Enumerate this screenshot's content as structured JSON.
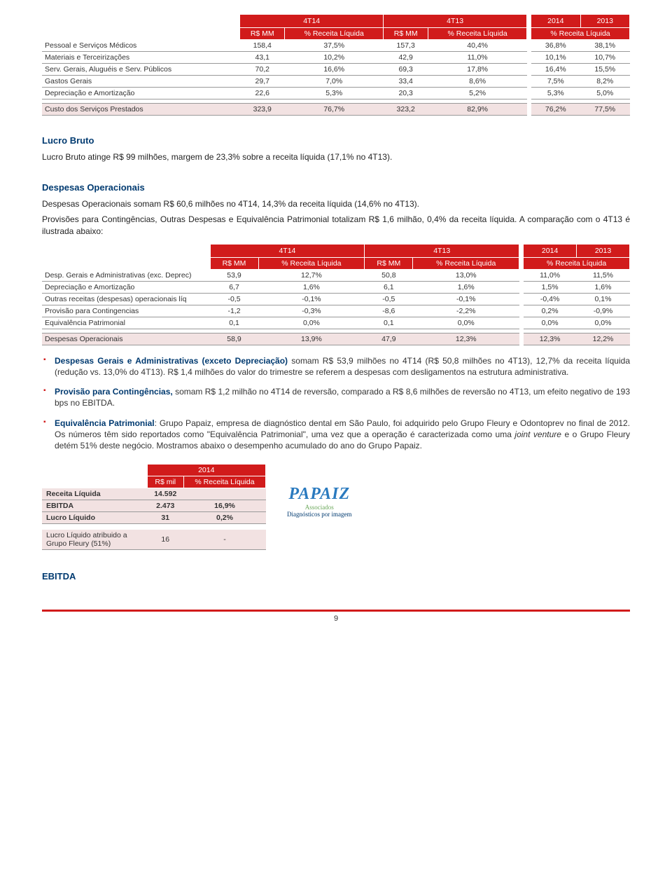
{
  "colors": {
    "primary_red": "#d11b1b",
    "accent_blue": "#003a70",
    "row_highlight": "#f2e2e2",
    "grid": "#999",
    "logo_blue": "#2a7abf",
    "logo_green": "#6BA85A"
  },
  "table1": {
    "periods_top": {
      "p1": "4T14",
      "p2": "4T13",
      "p3": "2014",
      "p4": "2013"
    },
    "col_headers": {
      "c1": "R$ MM",
      "c2": "% Receita Líquida",
      "c3": "R$ MM",
      "c4": "% Receita Líquida",
      "c5": "% Receita Líquida"
    },
    "rows": [
      {
        "label": "Pessoal e Serviços Médicos",
        "v": [
          "158,4",
          "37,5%",
          "157,3",
          "40,4%",
          "36,8%",
          "38,1%"
        ]
      },
      {
        "label": "Materiais e Terceirizações",
        "v": [
          "43,1",
          "10,2%",
          "42,9",
          "11,0%",
          "10,1%",
          "10,7%"
        ]
      },
      {
        "label": "Serv. Gerais, Aluguéis e Serv. Públicos",
        "v": [
          "70,2",
          "16,6%",
          "69,3",
          "17,8%",
          "16,4%",
          "15,5%"
        ]
      },
      {
        "label": "Gastos Gerais",
        "v": [
          "29,7",
          "7,0%",
          "33,4",
          "8,6%",
          "7,5%",
          "8,2%"
        ]
      },
      {
        "label": "Depreciação e Amortização",
        "v": [
          "22,6",
          "5,3%",
          "20,3",
          "5,2%",
          "5,3%",
          "5,0%"
        ]
      }
    ],
    "total": {
      "label": "Custo dos Serviços Prestados",
      "v": [
        "323,9",
        "76,7%",
        "323,2",
        "82,9%",
        "76,2%",
        "77,5%"
      ]
    }
  },
  "section1": {
    "title": "Lucro Bruto",
    "p1": "Lucro Bruto atinge R$ 99 milhões, margem de 23,3% sobre a receita líquida (17,1% no 4T13)."
  },
  "section2": {
    "title": "Despesas Operacionais",
    "p1": "Despesas Operacionais somam R$ 60,6 milhões no 4T14, 14,3% da receita líquida (14,6% no 4T13).",
    "p2": "Provisões para Contingências, Outras Despesas e Equivalência Patrimonial totalizam R$ 1,6 milhão, 0,4% da receita líquida. A comparação com o 4T13 é ilustrada abaixo:"
  },
  "table2": {
    "periods_top": {
      "p1": "4T14",
      "p2": "4T13",
      "p3": "2014",
      "p4": "2013"
    },
    "col_headers": {
      "c1": "R$ MM",
      "c2": "% Receita Líquida",
      "c3": "R$ MM",
      "c4": "% Receita Líquida",
      "c5": "% Receita Líquida"
    },
    "rows": [
      {
        "label": "Desp. Gerais e Administrativas (exc. Deprec)",
        "v": [
          "53,9",
          "12,7%",
          "50,8",
          "13,0%",
          "11,0%",
          "11,5%"
        ]
      },
      {
        "label": "Depreciação e Amortização",
        "v": [
          "6,7",
          "1,6%",
          "6,1",
          "1,6%",
          "1,5%",
          "1,6%"
        ]
      },
      {
        "label": "Outras receitas (despesas) operacionais líq",
        "v": [
          "-0,5",
          "-0,1%",
          "-0,5",
          "-0,1%",
          "-0,4%",
          "0,1%"
        ]
      },
      {
        "label": "Provisão para Contingencias",
        "v": [
          "-1,2",
          "-0,3%",
          "-8,6",
          "-2,2%",
          "0,2%",
          "-0,9%"
        ]
      },
      {
        "label": "Equivalência Patrimonial",
        "v": [
          "0,1",
          "0,0%",
          "0,1",
          "0,0%",
          "0,0%",
          "0,0%"
        ]
      }
    ],
    "total": {
      "label": "Despesas Operacionais",
      "v": [
        "58,9",
        "13,9%",
        "47,9",
        "12,3%",
        "12,3%",
        "12,2%"
      ]
    }
  },
  "bullets": {
    "b1_lead": "Despesas Gerais e Administrativas (exceto Depreciação)",
    "b1_rest": " somam R$ 53,9 milhões no 4T14 (R$ 50,8 milhões no 4T13), 12,7% da receita líquida (redução vs. 13,0% do 4T13). R$ 1,4 milhões do valor do trimestre se referem a despesas com desligamentos na estrutura administrativa.",
    "b2_lead": "Provisão para Contingências,",
    "b2_rest": " somam R$ 1,2 milhão no 4T14 de reversão, comparado a R$ 8,6 milhões de reversão no 4T13, um efeito negativo de 193 bps no EBITDA.",
    "b3_lead": "Equivalência Patrimonial",
    "b3_rest_a": ": Grupo Papaiz, empresa de diagnóstico dental em São Paulo, foi adquirido pelo Grupo Fleury e Odontoprev no final de 2012. Os números têm sido reportados como \"Equivalência Patrimonial\", uma vez que a operação é caracterizada como uma ",
    "b3_italic": "joint venture",
    "b3_rest_b": " e o Grupo Fleury detém 51% deste negócio. Mostramos abaixo o desempenho acumulado do ano do Grupo Papaiz."
  },
  "table3": {
    "period": "2014",
    "col_headers": {
      "c1": "R$ mil",
      "c2": "% Receita Líquida"
    },
    "rows": [
      {
        "label": "Receita Líquida",
        "v": [
          "14.592",
          ""
        ],
        "hi": true
      },
      {
        "label": "EBITDA",
        "v": [
          "2.473",
          "16,9%"
        ],
        "hi": true
      },
      {
        "label": "Lucro Líquido",
        "v": [
          "31",
          "0,2%"
        ],
        "hi": true
      }
    ],
    "footer": {
      "label": "Lucro Líquido atribuido a Grupo Fleury (51%)",
      "v": [
        "16",
        "-"
      ]
    }
  },
  "logo": {
    "main": "PAPAIZ",
    "sub": "Associados",
    "tag": "Diagnósticos por imagem"
  },
  "section3": {
    "title": "EBITDA"
  },
  "page_number": "9"
}
